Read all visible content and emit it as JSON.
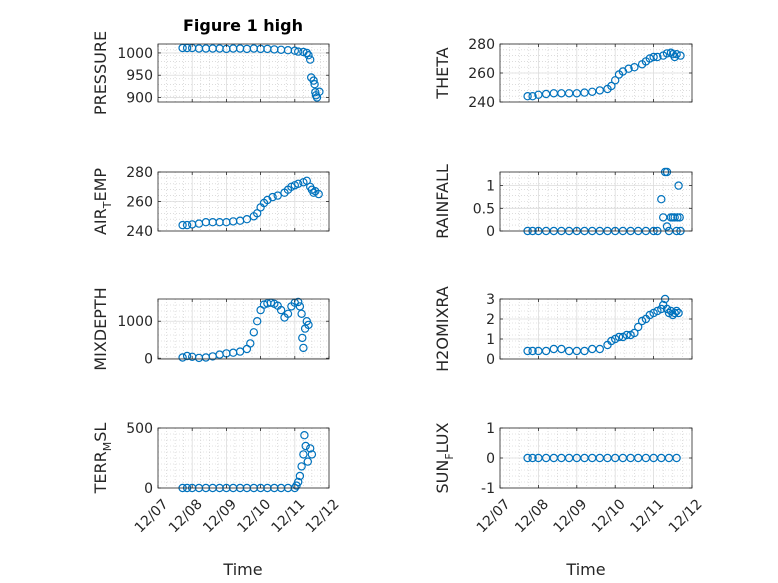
{
  "figure": {
    "title": "Figure 1 high",
    "marker_color": "#0072BD",
    "xtick_labels": [
      "12/07",
      "12/08",
      "12/09",
      "12/10",
      "12/11",
      "12/12"
    ],
    "xlabel": "Time"
  },
  "chart_data": [
    {
      "type": "scatter",
      "name": "pressure-plot",
      "title": "Figure 1 high",
      "ylabel": "PRESSURE",
      "xlim": [
        0,
        5
      ],
      "ylim": [
        890,
        1020
      ],
      "yticks": [
        900,
        950,
        1000
      ],
      "ytick_labels": [
        "900",
        "950",
        "1000"
      ],
      "grid": true,
      "minor_grid": true,
      "points": [
        [
          0.72,
          1011
        ],
        [
          0.85,
          1011
        ],
        [
          1.0,
          1011
        ],
        [
          1.2,
          1010
        ],
        [
          1.4,
          1010
        ],
        [
          1.6,
          1010
        ],
        [
          1.8,
          1010
        ],
        [
          2.0,
          1009
        ],
        [
          2.2,
          1010
        ],
        [
          2.4,
          1010
        ],
        [
          2.6,
          1009
        ],
        [
          2.8,
          1010
        ],
        [
          3.0,
          1009
        ],
        [
          3.2,
          1009
        ],
        [
          3.4,
          1008
        ],
        [
          3.6,
          1007
        ],
        [
          3.8,
          1006
        ],
        [
          4.0,
          1005
        ],
        [
          4.1,
          1003
        ],
        [
          4.25,
          1002
        ],
        [
          4.35,
          1000
        ],
        [
          4.4,
          995
        ],
        [
          4.45,
          985
        ],
        [
          4.48,
          945
        ],
        [
          4.55,
          938
        ],
        [
          4.58,
          930
        ],
        [
          4.6,
          912
        ],
        [
          4.62,
          905
        ],
        [
          4.65,
          900
        ],
        [
          4.72,
          913
        ]
      ]
    },
    {
      "type": "scatter",
      "name": "theta-plot",
      "ylabel": "THETA",
      "xlim": [
        0,
        5
      ],
      "ylim": [
        240,
        280
      ],
      "yticks": [
        240,
        260,
        280
      ],
      "ytick_labels": [
        "240",
        "260",
        "280"
      ],
      "grid": true,
      "minor_grid": true,
      "points": [
        [
          0.72,
          244
        ],
        [
          0.85,
          244
        ],
        [
          1.0,
          245
        ],
        [
          1.2,
          245.5
        ],
        [
          1.4,
          246
        ],
        [
          1.6,
          246
        ],
        [
          1.8,
          246
        ],
        [
          2.0,
          246
        ],
        [
          2.2,
          246.5
        ],
        [
          2.4,
          247
        ],
        [
          2.6,
          248
        ],
        [
          2.8,
          249
        ],
        [
          2.9,
          251
        ],
        [
          3.0,
          255
        ],
        [
          3.1,
          259
        ],
        [
          3.2,
          261
        ],
        [
          3.35,
          263
        ],
        [
          3.5,
          264
        ],
        [
          3.7,
          266
        ],
        [
          3.8,
          268
        ],
        [
          3.9,
          270
        ],
        [
          4.0,
          271
        ],
        [
          4.1,
          271
        ],
        [
          4.25,
          272
        ],
        [
          4.35,
          273.5
        ],
        [
          4.45,
          274
        ],
        [
          4.5,
          273
        ],
        [
          4.55,
          271
        ],
        [
          4.6,
          273
        ],
        [
          4.7,
          272
        ]
      ]
    },
    {
      "type": "scatter",
      "name": "air-temp-plot",
      "ylabel": "AIR",
      "ylabel_sub": "T",
      "ylabel_rest": "EMP",
      "xlim": [
        0,
        5
      ],
      "ylim": [
        240,
        280
      ],
      "yticks": [
        240,
        260,
        280
      ],
      "ytick_labels": [
        "240",
        "260",
        "280"
      ],
      "grid": true,
      "minor_grid": true,
      "points": [
        [
          0.72,
          244
        ],
        [
          0.85,
          244
        ],
        [
          1.0,
          244.5
        ],
        [
          1.2,
          245
        ],
        [
          1.4,
          246
        ],
        [
          1.6,
          246
        ],
        [
          1.8,
          246
        ],
        [
          2.0,
          246
        ],
        [
          2.2,
          246.5
        ],
        [
          2.4,
          247
        ],
        [
          2.6,
          248
        ],
        [
          2.8,
          250
        ],
        [
          2.9,
          252
        ],
        [
          3.0,
          256
        ],
        [
          3.1,
          259
        ],
        [
          3.2,
          261
        ],
        [
          3.35,
          263
        ],
        [
          3.5,
          264
        ],
        [
          3.7,
          266
        ],
        [
          3.8,
          268
        ],
        [
          3.9,
          270
        ],
        [
          4.0,
          271
        ],
        [
          4.1,
          272
        ],
        [
          4.25,
          273
        ],
        [
          4.35,
          274
        ],
        [
          4.45,
          270
        ],
        [
          4.5,
          268
        ],
        [
          4.55,
          266
        ],
        [
          4.6,
          267
        ],
        [
          4.7,
          265
        ]
      ]
    },
    {
      "type": "scatter",
      "name": "rainfall-plot",
      "ylabel": "RAINFALL",
      "xlim": [
        0,
        5
      ],
      "ylim": [
        0,
        1.3
      ],
      "yticks": [
        0,
        0.5,
        1
      ],
      "ytick_labels": [
        "0",
        "0.5",
        "1"
      ],
      "grid": true,
      "minor_grid": true,
      "points": [
        [
          0.72,
          0
        ],
        [
          0.85,
          0
        ],
        [
          1.0,
          0
        ],
        [
          1.2,
          0
        ],
        [
          1.4,
          0
        ],
        [
          1.6,
          0
        ],
        [
          1.8,
          0
        ],
        [
          2.0,
          0
        ],
        [
          2.2,
          0
        ],
        [
          2.4,
          0
        ],
        [
          2.6,
          0
        ],
        [
          2.8,
          0
        ],
        [
          3.0,
          0
        ],
        [
          3.2,
          0
        ],
        [
          3.4,
          0
        ],
        [
          3.6,
          0
        ],
        [
          3.8,
          0
        ],
        [
          4.0,
          0
        ],
        [
          4.1,
          0
        ],
        [
          4.2,
          0.7
        ],
        [
          4.25,
          0.3
        ],
        [
          4.3,
          1.3
        ],
        [
          4.35,
          1.3
        ],
        [
          4.35,
          0.1
        ],
        [
          4.4,
          0
        ],
        [
          4.45,
          0.3
        ],
        [
          4.5,
          0.3
        ],
        [
          4.55,
          0.3
        ],
        [
          4.6,
          0
        ],
        [
          4.62,
          0.3
        ],
        [
          4.65,
          1.0
        ],
        [
          4.68,
          0.3
        ],
        [
          4.7,
          0
        ]
      ]
    },
    {
      "type": "scatter",
      "name": "mixdepth-plot",
      "ylabel": "MIXDEPTH",
      "xlim": [
        0,
        5
      ],
      "ylim": [
        -20,
        1600
      ],
      "yticks": [
        0,
        1000
      ],
      "ytick_labels": [
        "0",
        "1000"
      ],
      "grid": true,
      "minor_grid": true,
      "points": [
        [
          0.72,
          20
        ],
        [
          0.85,
          60
        ],
        [
          1.0,
          40
        ],
        [
          1.2,
          10
        ],
        [
          1.4,
          20
        ],
        [
          1.6,
          50
        ],
        [
          1.8,
          100
        ],
        [
          2.0,
          130
        ],
        [
          2.2,
          150
        ],
        [
          2.4,
          180
        ],
        [
          2.6,
          250
        ],
        [
          2.7,
          400
        ],
        [
          2.8,
          700
        ],
        [
          2.9,
          1000
        ],
        [
          3.0,
          1300
        ],
        [
          3.1,
          1450
        ],
        [
          3.2,
          1480
        ],
        [
          3.3,
          1500
        ],
        [
          3.4,
          1470
        ],
        [
          3.5,
          1420
        ],
        [
          3.6,
          1300
        ],
        [
          3.7,
          1100
        ],
        [
          3.8,
          1200
        ],
        [
          3.9,
          1400
        ],
        [
          4.0,
          1500
        ],
        [
          4.1,
          1520
        ],
        [
          4.15,
          1400
        ],
        [
          4.2,
          1200
        ],
        [
          4.22,
          550
        ],
        [
          4.25,
          280
        ],
        [
          4.3,
          800
        ],
        [
          4.35,
          1000
        ],
        [
          4.4,
          900
        ]
      ]
    },
    {
      "type": "scatter",
      "name": "h2omixra-plot",
      "ylabel": "H2OMIXRA",
      "xlim": [
        0,
        5
      ],
      "ylim": [
        0,
        3
      ],
      "yticks": [
        0,
        1,
        2,
        3
      ],
      "ytick_labels": [
        "0",
        "1",
        "2",
        "3"
      ],
      "grid": true,
      "minor_grid": true,
      "points": [
        [
          0.72,
          0.4
        ],
        [
          0.85,
          0.4
        ],
        [
          1.0,
          0.4
        ],
        [
          1.2,
          0.4
        ],
        [
          1.4,
          0.5
        ],
        [
          1.6,
          0.5
        ],
        [
          1.8,
          0.4
        ],
        [
          2.0,
          0.4
        ],
        [
          2.2,
          0.4
        ],
        [
          2.4,
          0.5
        ],
        [
          2.6,
          0.5
        ],
        [
          2.8,
          0.7
        ],
        [
          2.9,
          0.9
        ],
        [
          3.0,
          1.0
        ],
        [
          3.1,
          1.1
        ],
        [
          3.2,
          1.1
        ],
        [
          3.3,
          1.2
        ],
        [
          3.4,
          1.2
        ],
        [
          3.5,
          1.3
        ],
        [
          3.6,
          1.6
        ],
        [
          3.7,
          1.9
        ],
        [
          3.8,
          2.0
        ],
        [
          3.9,
          2.2
        ],
        [
          4.0,
          2.3
        ],
        [
          4.1,
          2.4
        ],
        [
          4.2,
          2.5
        ],
        [
          4.25,
          2.7
        ],
        [
          4.3,
          3.0
        ],
        [
          4.35,
          2.5
        ],
        [
          4.4,
          2.3
        ],
        [
          4.45,
          2.4
        ],
        [
          4.5,
          2.2
        ],
        [
          4.55,
          2.3
        ],
        [
          4.6,
          2.4
        ],
        [
          4.65,
          2.3
        ]
      ]
    },
    {
      "type": "scatter",
      "name": "terrain-msl-plot",
      "ylabel": "TERR",
      "ylabel_sub": "M",
      "ylabel_rest": "SL",
      "xlim": [
        0,
        5
      ],
      "ylim": [
        0,
        500
      ],
      "yticks": [
        0,
        500
      ],
      "ytick_labels": [
        "0",
        "500"
      ],
      "grid": true,
      "minor_grid": true,
      "points": [
        [
          0.72,
          0
        ],
        [
          0.85,
          0
        ],
        [
          1.0,
          0
        ],
        [
          1.2,
          0
        ],
        [
          1.4,
          0
        ],
        [
          1.6,
          0
        ],
        [
          1.8,
          0
        ],
        [
          2.0,
          0
        ],
        [
          2.2,
          0
        ],
        [
          2.4,
          0
        ],
        [
          2.6,
          0
        ],
        [
          2.8,
          0
        ],
        [
          3.0,
          0
        ],
        [
          3.2,
          0
        ],
        [
          3.4,
          0
        ],
        [
          3.6,
          0
        ],
        [
          3.8,
          0
        ],
        [
          4.0,
          0
        ],
        [
          4.05,
          20
        ],
        [
          4.1,
          50
        ],
        [
          4.15,
          100
        ],
        [
          4.2,
          180
        ],
        [
          4.25,
          280
        ],
        [
          4.28,
          440
        ],
        [
          4.32,
          350
        ],
        [
          4.38,
          220
        ],
        [
          4.45,
          330
        ],
        [
          4.5,
          280
        ]
      ]
    },
    {
      "type": "scatter",
      "name": "sunflux-plot",
      "ylabel": "SUN",
      "ylabel_sub": "F",
      "ylabel_rest": "LUX",
      "xlim": [
        0,
        5
      ],
      "ylim": [
        -1,
        1
      ],
      "yticks": [
        -1,
        0,
        1
      ],
      "ytick_labels": [
        "-1",
        "0",
        "1"
      ],
      "grid": true,
      "minor_grid": true,
      "points": [
        [
          0.72,
          0
        ],
        [
          0.85,
          0
        ],
        [
          1.0,
          0
        ],
        [
          1.2,
          0
        ],
        [
          1.4,
          0
        ],
        [
          1.6,
          0
        ],
        [
          1.8,
          0
        ],
        [
          2.0,
          0
        ],
        [
          2.2,
          0
        ],
        [
          2.4,
          0
        ],
        [
          2.6,
          0
        ],
        [
          2.8,
          0
        ],
        [
          3.0,
          0
        ],
        [
          3.2,
          0
        ],
        [
          3.4,
          0
        ],
        [
          3.6,
          0
        ],
        [
          3.8,
          0
        ],
        [
          4.0,
          0
        ],
        [
          4.2,
          0
        ],
        [
          4.4,
          0
        ],
        [
          4.6,
          0
        ]
      ]
    }
  ]
}
